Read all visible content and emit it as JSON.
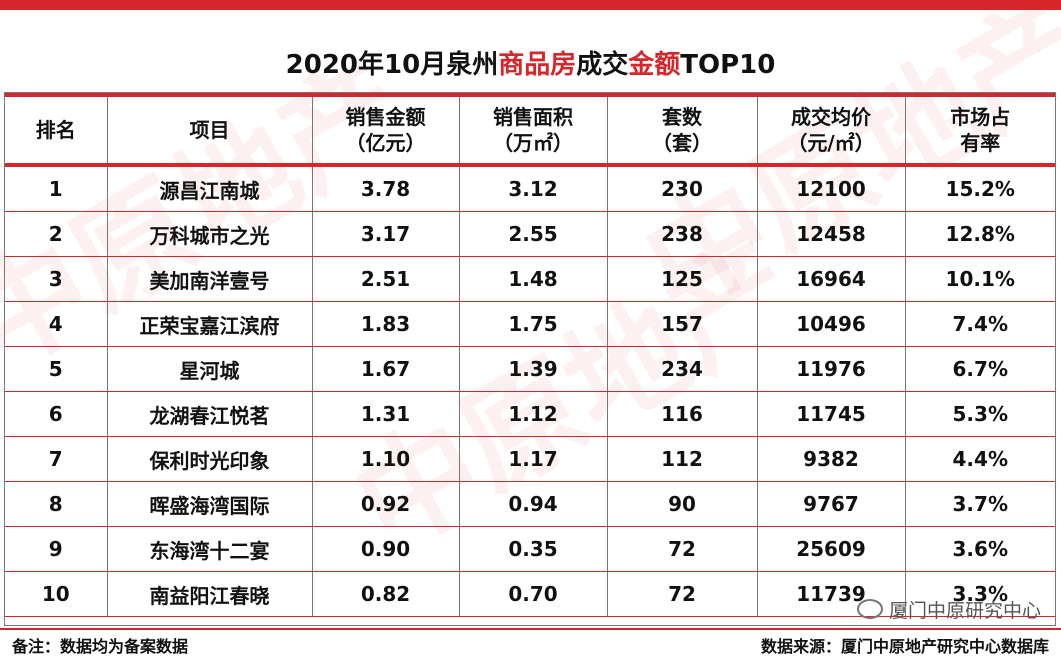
{
  "title": {
    "prefix": "2020年10月泉州",
    "red1": "商品房",
    "middle": "成交",
    "red2": "金额",
    "suffix": "TOP10"
  },
  "headers": [
    {
      "line1": "排名",
      "line2": ""
    },
    {
      "line1": "项目",
      "line2": ""
    },
    {
      "line1": "销售金额",
      "line2": "（亿元）"
    },
    {
      "line1": "销售面积",
      "line2": "（万㎡）"
    },
    {
      "line1": "套数",
      "line2": "（套）"
    },
    {
      "line1": "成交均价",
      "line2": "（元/㎡）"
    },
    {
      "line1": "市场占",
      "line2": "有率"
    }
  ],
  "rows": [
    [
      "1",
      "源昌江南城",
      "3.78",
      "3.12",
      "230",
      "12100",
      "15.2%"
    ],
    [
      "2",
      "万科城市之光",
      "3.17",
      "2.55",
      "238",
      "12458",
      "12.8%"
    ],
    [
      "3",
      "美加南洋壹号",
      "2.51",
      "1.48",
      "125",
      "16964",
      "10.1%"
    ],
    [
      "4",
      "正荣宝嘉江滨府",
      "1.83",
      "1.75",
      "157",
      "10496",
      "7.4%"
    ],
    [
      "5",
      "星河城",
      "1.67",
      "1.39",
      "234",
      "11976",
      "6.7%"
    ],
    [
      "6",
      "龙湖春江悦茗",
      "1.31",
      "1.12",
      "116",
      "11745",
      "5.3%"
    ],
    [
      "7",
      "保利时光印象",
      "1.10",
      "1.17",
      "112",
      "9382",
      "4.4%"
    ],
    [
      "8",
      "晖盛海湾国际",
      "0.92",
      "0.94",
      "90",
      "9767",
      "3.7%"
    ],
    [
      "9",
      "东海湾十二宴",
      "0.90",
      "0.35",
      "72",
      "25609",
      "3.6%"
    ],
    [
      "10",
      "南益阳江春晓",
      "0.82",
      "0.70",
      "72",
      "11739",
      "3.3%"
    ]
  ],
  "watermark_text": "中原地产",
  "wechat_label": "厦门中原研究中心",
  "note_left": "备注：数据均为备案数据",
  "note_right": "数据来源：厦门中原地产研究中心数据库",
  "colors": {
    "accent": "#d7262b"
  }
}
